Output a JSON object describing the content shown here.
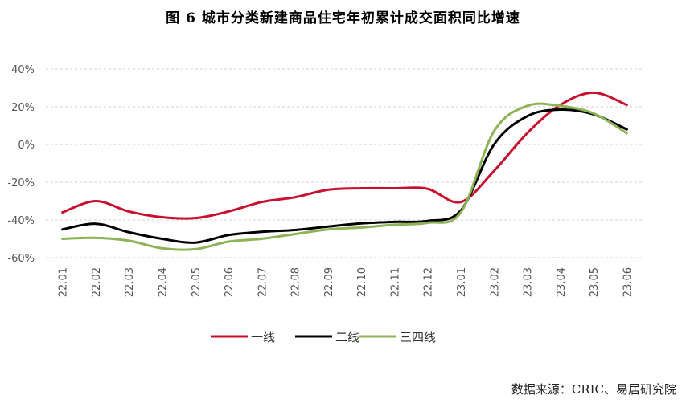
{
  "title": "图 6 城市分类新建商品住宅年初累计成交面积同比增速",
  "source": "数据来源：CRIC、易居研究院",
  "chart_data": {
    "type": "line",
    "categories": [
      "22.01",
      "22.02",
      "22.03",
      "22.04",
      "22.05",
      "22.06",
      "22.07",
      "22.08",
      "22.09",
      "22.10",
      "22.11",
      "22.12",
      "23.01",
      "23.02",
      "23.03",
      "23.04",
      "23.05",
      "23.06"
    ],
    "y_ticks": [
      "40%",
      "20%",
      "0%",
      "-20%",
      "-40%",
      "-60%"
    ],
    "ylim": [
      -60,
      40
    ],
    "unit": "%",
    "grid": "horizontal dashed",
    "legend_position": "bottom",
    "series": [
      {
        "name": "一线",
        "color": "#c8102e",
        "values": [
          -36,
          -30,
          -35.5,
          -38.5,
          -39,
          -35.5,
          -30.5,
          -28,
          -24,
          -23.2,
          -23.2,
          -23.5,
          -30.5,
          -14,
          6,
          21,
          27.5,
          21
        ]
      },
      {
        "name": "二线",
        "color": "#000000",
        "values": [
          -45,
          -42,
          -46.5,
          -50,
          -52,
          -48,
          -46.3,
          -45.3,
          -43.5,
          -41.8,
          -41,
          -40.5,
          -35,
          0,
          15,
          18.5,
          16,
          8
        ]
      },
      {
        "name": "三四线",
        "color": "#8db356",
        "values": [
          -50,
          -49.5,
          -51,
          -55,
          -55.5,
          -51.5,
          -50,
          -47.5,
          -45,
          -44,
          -42.5,
          -41.5,
          -36,
          7,
          20.5,
          20.5,
          16.5,
          6
        ]
      }
    ]
  }
}
